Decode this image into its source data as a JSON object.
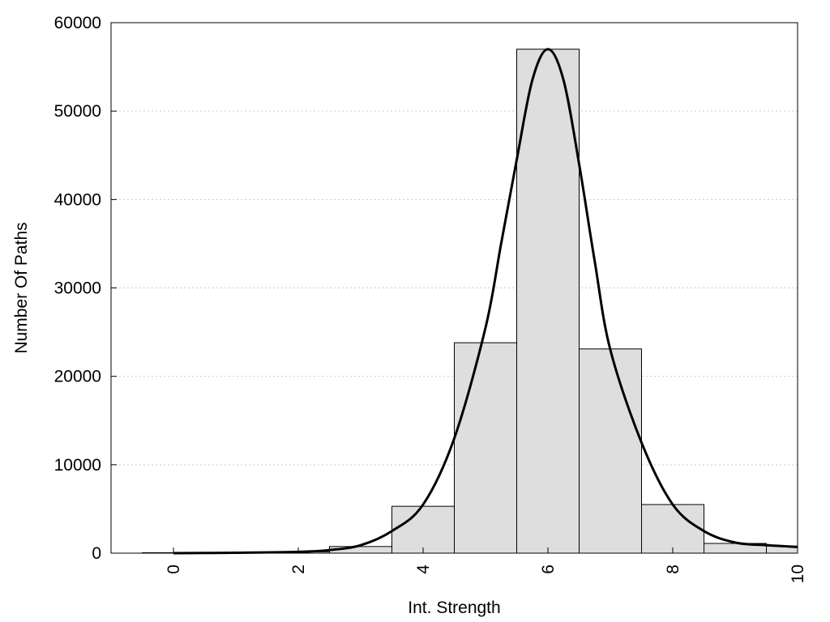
{
  "chart_data": {
    "type": "bar",
    "xlabel": "Int. Strength",
    "ylabel": "Number Of Paths",
    "xlim": [
      -1,
      10
    ],
    "ylim": [
      0,
      60000
    ],
    "x_ticks": [
      "0",
      "2",
      "4",
      "6",
      "8",
      "10"
    ],
    "y_ticks": [
      "0",
      "10000",
      "20000",
      "30000",
      "40000",
      "50000",
      "60000"
    ],
    "grid": "horizontal dotted",
    "colors": {
      "bar_fill": "#dedede",
      "bar_edge": "#000000",
      "curve": "#000000",
      "grid": "#cccccc"
    },
    "histogram": {
      "bin_width": 1,
      "centers": [
        0,
        1,
        2,
        3,
        4,
        5,
        6,
        7,
        8,
        9,
        10
      ],
      "values": [
        50,
        80,
        150,
        750,
        5300,
        23800,
        57000,
        23100,
        5500,
        1100,
        800
      ]
    },
    "fit_curve": {
      "x": [
        0,
        1,
        2,
        2.5,
        3,
        3.5,
        4,
        4.5,
        5,
        5.25,
        5.5,
        5.75,
        6,
        6.25,
        6.5,
        6.75,
        7,
        7.5,
        8,
        8.5,
        9,
        9.5,
        10
      ],
      "y": [
        0,
        50,
        150,
        350,
        900,
        2500,
        5500,
        13000,
        25500,
        35000,
        44500,
        53500,
        57000,
        53500,
        44000,
        33000,
        23000,
        12500,
        5500,
        2500,
        1200,
        900,
        700
      ]
    }
  }
}
